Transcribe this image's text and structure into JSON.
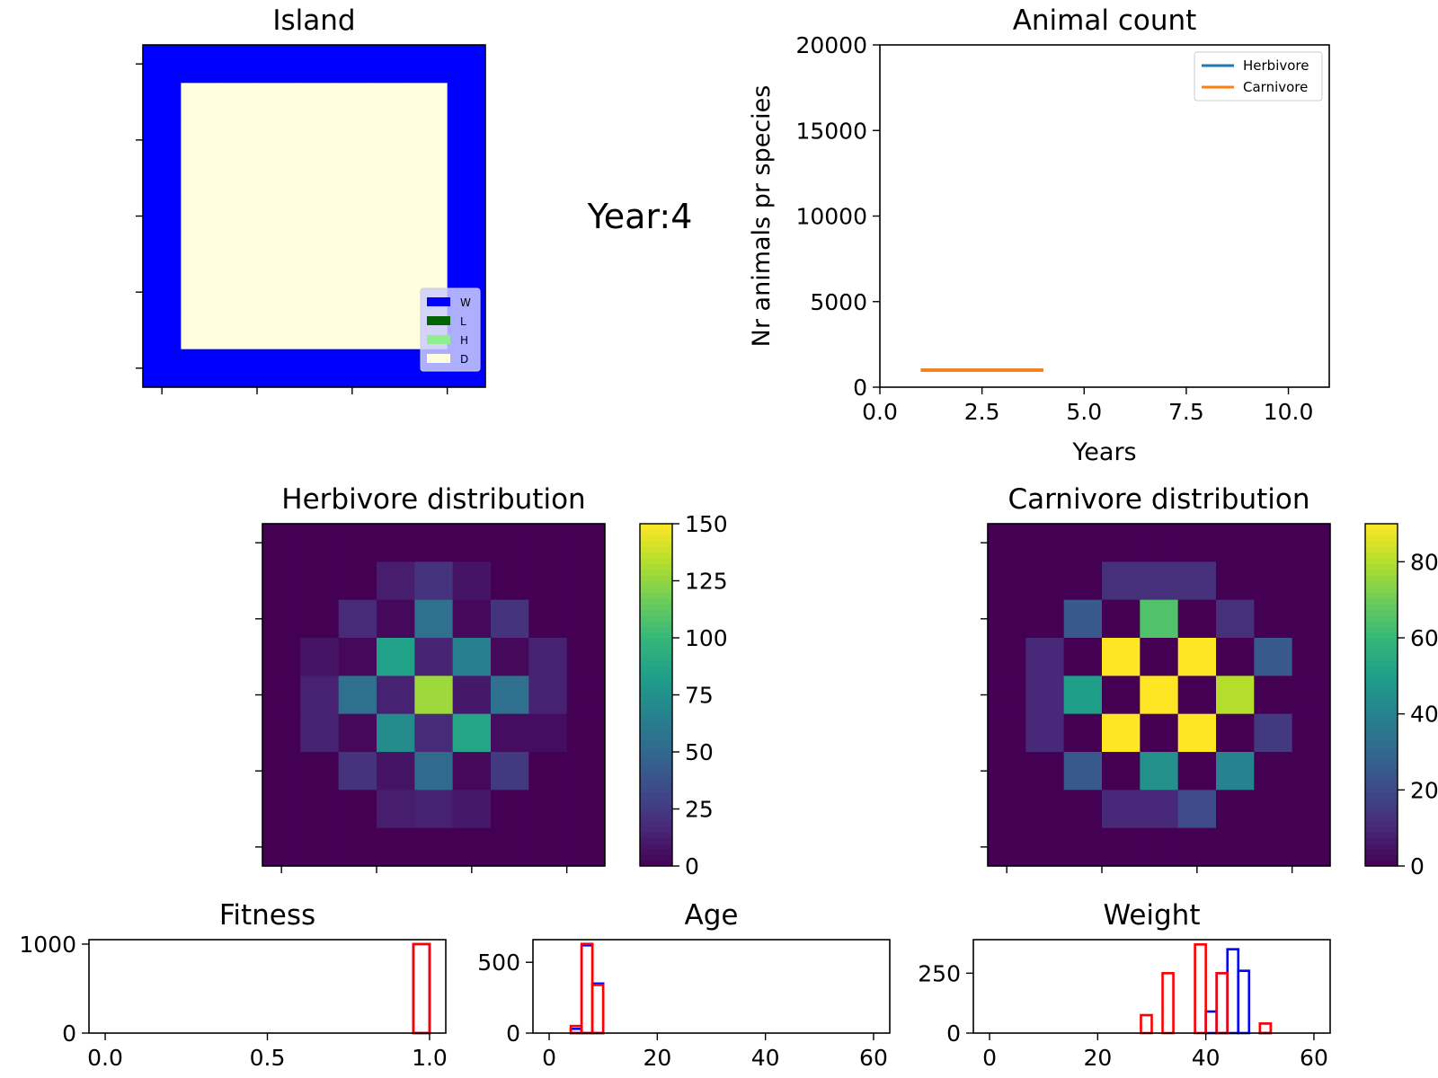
{
  "year_label": "Year:4",
  "chart_data": [
    {
      "id": "island",
      "type": "heatmap",
      "title": "Island",
      "grid": [
        [
          "W",
          "W",
          "W",
          "W",
          "W",
          "W",
          "W",
          "W",
          "W"
        ],
        [
          "W",
          "D",
          "D",
          "D",
          "D",
          "D",
          "D",
          "D",
          "W"
        ],
        [
          "W",
          "D",
          "D",
          "D",
          "D",
          "D",
          "D",
          "D",
          "W"
        ],
        [
          "W",
          "D",
          "D",
          "D",
          "D",
          "D",
          "D",
          "D",
          "W"
        ],
        [
          "W",
          "D",
          "D",
          "D",
          "D",
          "D",
          "D",
          "D",
          "W"
        ],
        [
          "W",
          "D",
          "D",
          "D",
          "D",
          "D",
          "D",
          "D",
          "W"
        ],
        [
          "W",
          "D",
          "D",
          "D",
          "D",
          "D",
          "D",
          "D",
          "W"
        ],
        [
          "W",
          "D",
          "D",
          "D",
          "D",
          "D",
          "D",
          "D",
          "W"
        ],
        [
          "W",
          "W",
          "W",
          "W",
          "W",
          "W",
          "W",
          "W",
          "W"
        ]
      ],
      "legend": [
        {
          "key": "W",
          "label": "W",
          "color": "#0000ff"
        },
        {
          "key": "L",
          "label": "L",
          "color": "#006400"
        },
        {
          "key": "H",
          "label": "H",
          "color": "#90ee90"
        },
        {
          "key": "D",
          "label": "D",
          "color": "#ffffe0"
        }
      ],
      "legend_position": "bottom-right",
      "tick_labels": "hidden"
    },
    {
      "id": "animal_count",
      "type": "line",
      "title": "Animal count",
      "xlabel": "Years",
      "ylabel": "Nr animals pr species",
      "xlim": [
        0,
        11
      ],
      "ylim": [
        0,
        20000
      ],
      "xticks": [
        0.0,
        2.5,
        5.0,
        7.5,
        10.0
      ],
      "xtick_labels": [
        "0.0",
        "2.5",
        "5.0",
        "7.5",
        "10.0"
      ],
      "yticks": [
        0,
        5000,
        10000,
        15000,
        20000
      ],
      "ytick_labels": [
        "0",
        "5000",
        "10000",
        "15000",
        "20000"
      ],
      "legend_position": "top-right",
      "series": [
        {
          "name": "Herbivore",
          "color": "#1f77b4",
          "x": [
            1,
            2,
            3,
            4
          ],
          "values": [
            1000,
            1000,
            1000,
            1000
          ]
        },
        {
          "name": "Carnivore",
          "color": "#ff7f0e",
          "x": [
            1,
            2,
            3,
            4
          ],
          "values": [
            1000,
            1000,
            1000,
            1000
          ]
        }
      ]
    },
    {
      "id": "herbivore_distribution",
      "type": "heatmap",
      "title": "Herbivore distribution",
      "colormap": "viridis",
      "vmin": 0,
      "vmax": 150,
      "colorbar_ticks": [
        0,
        25,
        50,
        75,
        100,
        125,
        150
      ],
      "colorbar_tick_labels": [
        "0",
        "25",
        "50",
        "75",
        "100",
        "125",
        "150"
      ],
      "values": [
        [
          0,
          0,
          0,
          0,
          0,
          0,
          0,
          0,
          0
        ],
        [
          0,
          0,
          0,
          12,
          22,
          8,
          0,
          0,
          0
        ],
        [
          0,
          0,
          18,
          3,
          55,
          3,
          22,
          0,
          0
        ],
        [
          0,
          8,
          3,
          85,
          15,
          65,
          3,
          14,
          0
        ],
        [
          0,
          14,
          55,
          14,
          128,
          10,
          55,
          14,
          0
        ],
        [
          0,
          14,
          3,
          72,
          18,
          88,
          5,
          5,
          0
        ],
        [
          0,
          0,
          22,
          8,
          52,
          3,
          25,
          0,
          0
        ],
        [
          0,
          0,
          0,
          12,
          14,
          10,
          0,
          0,
          0
        ],
        [
          0,
          0,
          0,
          0,
          0,
          0,
          0,
          0,
          0
        ]
      ]
    },
    {
      "id": "carnivore_distribution",
      "type": "heatmap",
      "title": "Carnivore distribution",
      "colormap": "viridis",
      "vmin": 0,
      "vmax": 90,
      "colorbar_ticks": [
        0,
        20,
        40,
        60,
        80
      ],
      "colorbar_tick_labels": [
        "0",
        "20",
        "40",
        "60",
        "80"
      ],
      "values": [
        [
          0,
          0,
          0,
          0,
          0,
          0,
          0,
          0,
          0
        ],
        [
          0,
          0,
          0,
          12,
          12,
          12,
          0,
          0,
          0
        ],
        [
          0,
          0,
          25,
          0,
          65,
          0,
          12,
          0,
          0
        ],
        [
          0,
          10,
          0,
          90,
          0,
          90,
          0,
          25,
          0
        ],
        [
          0,
          10,
          50,
          0,
          90,
          0,
          80,
          0,
          0
        ],
        [
          0,
          10,
          0,
          90,
          0,
          90,
          0,
          15,
          0
        ],
        [
          0,
          0,
          25,
          0,
          45,
          0,
          40,
          0,
          0
        ],
        [
          0,
          0,
          0,
          10,
          10,
          20,
          0,
          0,
          0
        ],
        [
          0,
          0,
          0,
          0,
          0,
          0,
          0,
          0,
          0
        ]
      ]
    },
    {
      "id": "fitness",
      "type": "histogram",
      "title": "Fitness",
      "xlim": [
        -0.05,
        1.05
      ],
      "ylim": [
        0,
        1050
      ],
      "xticks": [
        0,
        0.5,
        1.0
      ],
      "xtick_labels": [
        "0.0",
        "0.5",
        "1.0"
      ],
      "yticks": [
        0,
        1000
      ],
      "ytick_labels": [
        "0",
        "1000"
      ],
      "series": [
        {
          "name": "herbivore",
          "color": "#0000ff",
          "bins": [
            [
              0.95,
              1.0,
              1000
            ]
          ]
        },
        {
          "name": "carnivore",
          "color": "#ff0000",
          "bins": [
            [
              0.95,
              1.0,
              1000
            ]
          ]
        }
      ]
    },
    {
      "id": "age",
      "type": "histogram",
      "title": "Age",
      "xlim": [
        -3,
        63
      ],
      "ylim": [
        0,
        660
      ],
      "xticks": [
        0,
        20,
        40,
        60
      ],
      "xtick_labels": [
        "0",
        "20",
        "40",
        "60"
      ],
      "yticks": [
        0,
        500
      ],
      "ytick_labels": [
        "0",
        "500"
      ],
      "series": [
        {
          "name": "herbivore",
          "color": "#0000ff",
          "bins": [
            [
              4,
              6,
              30
            ],
            [
              6,
              8,
              620
            ],
            [
              8,
              10,
              350
            ]
          ]
        },
        {
          "name": "carnivore",
          "color": "#ff0000",
          "bins": [
            [
              4,
              6,
              50
            ],
            [
              6,
              8,
              630
            ],
            [
              8,
              10,
              340
            ]
          ]
        }
      ]
    },
    {
      "id": "weight",
      "type": "histogram",
      "title": "Weight",
      "xlim": [
        -3,
        63
      ],
      "ylim": [
        0,
        390
      ],
      "xticks": [
        0,
        20,
        40,
        60
      ],
      "xtick_labels": [
        "0",
        "20",
        "40",
        "60"
      ],
      "yticks": [
        0,
        250
      ],
      "ytick_labels": [
        "0",
        "250"
      ],
      "series": [
        {
          "name": "herbivore",
          "color": "#0000ff",
          "bins": [
            [
              40,
              42,
              90
            ],
            [
              42,
              44,
              250
            ],
            [
              44,
              46,
              350
            ],
            [
              46,
              48,
              260
            ],
            [
              48,
              50,
              0
            ],
            [
              50,
              52,
              40
            ]
          ]
        },
        {
          "name": "carnivore",
          "color": "#ff0000",
          "bins": [
            [
              28,
              30,
              75
            ],
            [
              32,
              34,
              250
            ],
            [
              38,
              40,
              370
            ],
            [
              42,
              44,
              250
            ],
            [
              50,
              52,
              40
            ]
          ]
        }
      ]
    }
  ]
}
